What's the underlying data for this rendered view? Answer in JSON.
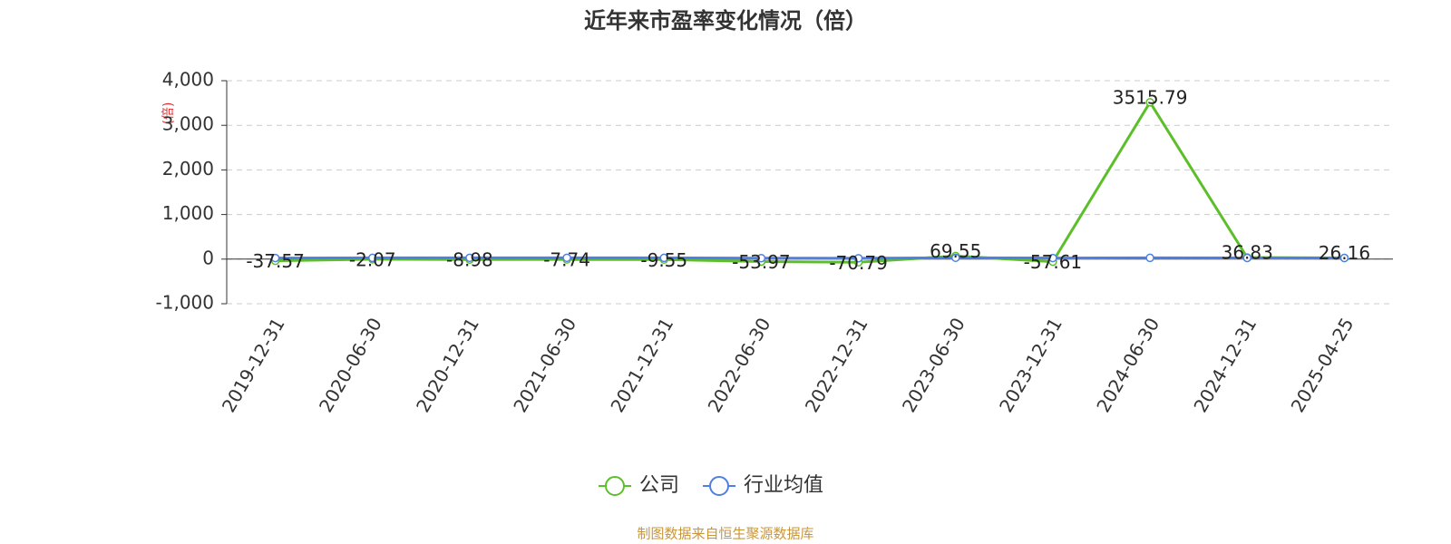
{
  "chart_data": {
    "type": "line",
    "title": "近年来市盈率变化情况（倍）",
    "y_label": "(倍)",
    "source": "制图数据来自恒生聚源数据库",
    "categories": [
      "2019-12-31",
      "2020-06-30",
      "2020-12-31",
      "2021-06-30",
      "2021-12-31",
      "2022-06-30",
      "2022-12-31",
      "2023-06-30",
      "2023-12-31",
      "2024-06-30",
      "2024-12-31",
      "2025-04-25"
    ],
    "series": [
      {
        "name": "公司",
        "color": "#5cbf2a",
        "values": [
          -37.57,
          -2.07,
          -8.98,
          -7.74,
          -9.55,
          -53.97,
          -70.79,
          69.55,
          -57.61,
          3515.79,
          36.83,
          26.16
        ]
      },
      {
        "name": "行业均值",
        "color": "#4f80e1",
        "values": [
          25,
          28,
          30,
          30,
          28,
          22,
          20,
          30,
          25,
          28,
          27,
          26
        ]
      }
    ],
    "ylim": [
      -1000,
      4000
    ],
    "yticks": [
      {
        "value": -1000,
        "label": "-1,000"
      },
      0,
      {
        "value": 1000,
        "label": "1,000"
      },
      {
        "value": 2000,
        "label": "2,000"
      },
      {
        "value": 3000,
        "label": "3,000"
      },
      {
        "value": 4000,
        "label": "4,000"
      }
    ],
    "grid": true
  }
}
